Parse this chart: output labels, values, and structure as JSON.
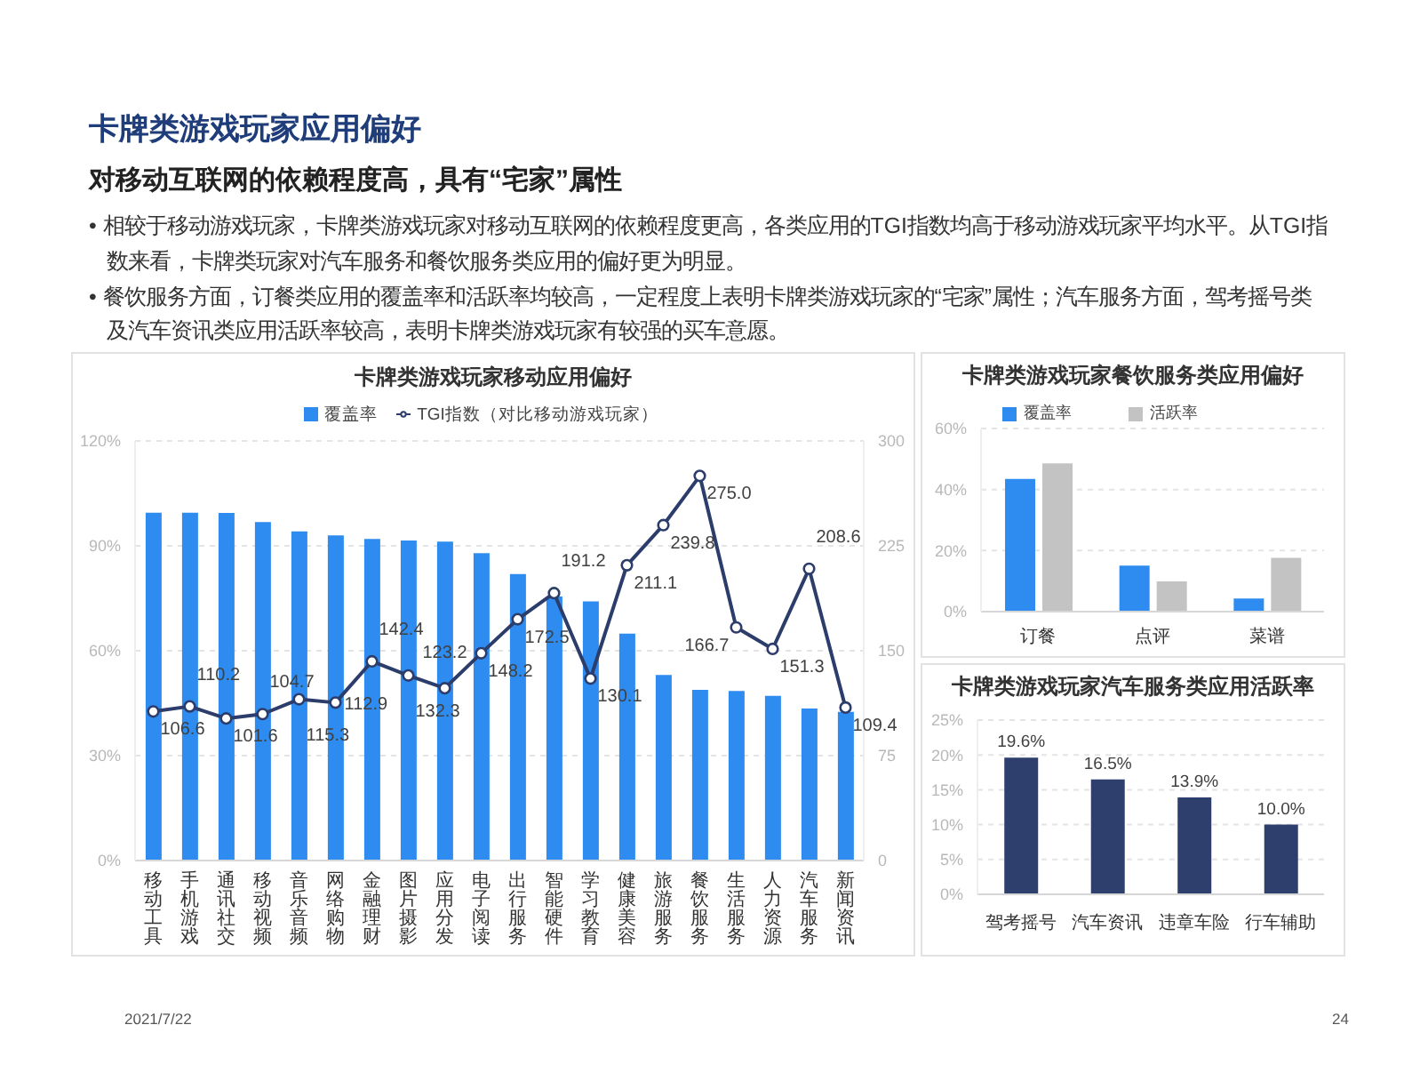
{
  "chart_data": [
    {
      "type": "other",
      "title": "卡牌类游戏玩家应用偏好",
      "subtitle": "对移动互联网的依赖程度高，具有“宅家”属性",
      "annotations": [
        "• 相较于移动游戏玩家，卡牌类游戏玩家对移动互联网的依赖程度更高，各类应用的TGI指数均高于移动游戏玩家平均水平。从TGI指数来看，卡牌类玩家对汽车服务和餐饮服务类应用的偏好更为明显。",
        "• 餐饮服务方面，订餐类应用的覆盖率和活跃率均较高，一定程度上表明卡牌类游戏玩家的“宅家”属性；汽车服务方面，驾考摇号类及汽车资讯类应用活跃率较高，表明卡牌类游戏玩家有较强的买车意愿。"
      ]
    },
    {
      "type": "bar",
      "title": "卡牌类游戏玩家移动应用偏好",
      "categories": [
        "移动工具",
        "手机游戏",
        "通讯社交",
        "移动视频",
        "音乐音频",
        "网络购物",
        "金融理财",
        "图片摄影",
        "应用分发",
        "电子阅读",
        "出行服务",
        "智能硬件",
        "学习教育",
        "健康美容",
        "旅游服务",
        "餐饮服务",
        "生活服务",
        "人力资源",
        "汽车服务",
        "新闻资讯"
      ],
      "series": [
        {
          "name": "覆盖率",
          "color": "#2e8cf0",
          "values": [
            99.5,
            99.5,
            99.4,
            96.8,
            94.1,
            93.0,
            92.0,
            91.5,
            91.2,
            87.9,
            81.9,
            75.5,
            74.1,
            64.9,
            53.1,
            48.8,
            48.5,
            47.1,
            43.5,
            42.5
          ]
        },
        {
          "name": "TGI指数（对比移动游戏玩家）",
          "type": "line",
          "axis": "y2",
          "color": "#2c3d6b",
          "values": [
            106.6,
            110.2,
            101.6,
            104.7,
            115.3,
            112.9,
            142.4,
            132.3,
            123.2,
            148.2,
            172.5,
            191.2,
            130.1,
            211.1,
            239.8,
            275.0,
            166.7,
            151.3,
            208.6,
            109.4
          ],
          "value_labels": [
            "106.6",
            "110.2",
            "101.6",
            "104.7",
            "115.3",
            "112.9",
            "142.4",
            "132.3",
            "123.2",
            "148.2",
            "172.5",
            "191.2",
            "130.1",
            "211.1",
            "239.8",
            "275.0",
            "166.7",
            "151.3",
            "208.6",
            "109.4"
          ]
        }
      ],
      "ylim": [
        0,
        120
      ],
      "yticks": [
        {
          "value": 0,
          "label": "0%"
        },
        {
          "value": 30,
          "label": "30%"
        },
        {
          "value": 60,
          "label": "60%"
        },
        {
          "value": 90,
          "label": "90%"
        },
        {
          "value": 120,
          "label": "120%"
        }
      ],
      "y2lim": [
        0,
        300
      ],
      "y2ticks": [
        0,
        75,
        150,
        225,
        300
      ],
      "grid": "y",
      "legend": "top",
      "marker": "circle"
    },
    {
      "type": "bar",
      "title": "卡牌类游戏玩家餐饮服务类应用偏好",
      "categories": [
        "订餐",
        "点评",
        "菜谱"
      ],
      "series": [
        {
          "name": "覆盖率",
          "color": "#2e8cf0",
          "values": [
            43.5,
            15.1,
            4.3
          ]
        },
        {
          "name": "活跃率",
          "color": "#c3c3c3",
          "values": [
            48.6,
            9.9,
            17.6
          ]
        }
      ],
      "ylim": [
        0,
        60
      ],
      "yticks": [
        {
          "value": 0,
          "label": "0%"
        },
        {
          "value": 20,
          "label": "20%"
        },
        {
          "value": 40,
          "label": "40%"
        },
        {
          "value": 60,
          "label": "60%"
        }
      ],
      "grid": "y",
      "legend": "top"
    },
    {
      "type": "bar",
      "title": "卡牌类游戏玩家汽车服务类应用活跃率",
      "categories": [
        "驾考摇号",
        "汽车资讯",
        "违章车险",
        "行车辅助"
      ],
      "series": [
        {
          "color": "#2e3f6e",
          "values": [
            19.6,
            16.5,
            13.9,
            10.0
          ],
          "value_labels": [
            "19.6%",
            "16.5%",
            "13.9%",
            "10.0%"
          ]
        }
      ],
      "ylim": [
        0,
        25
      ],
      "yticks": [
        {
          "value": 0,
          "label": "0%"
        },
        {
          "value": 5,
          "label": "5%"
        },
        {
          "value": 10,
          "label": "10%"
        },
        {
          "value": 15,
          "label": "15%"
        },
        {
          "value": 20,
          "label": "20%"
        },
        {
          "value": 25,
          "label": "25%"
        }
      ],
      "grid": "y"
    },
    {
      "type": "other",
      "annotations": [
        "2021/7/22",
        "24"
      ]
    }
  ]
}
